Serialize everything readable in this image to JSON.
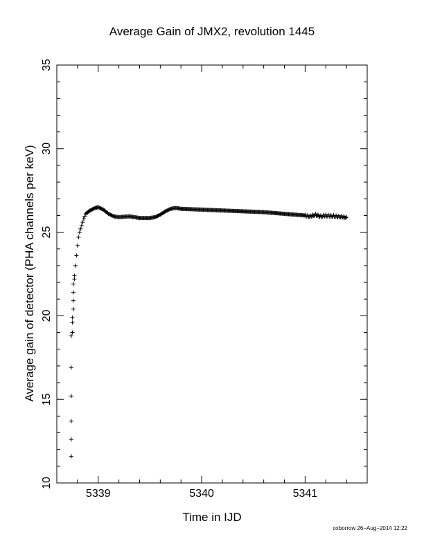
{
  "chart_data": {
    "type": "scatter",
    "title": "Average Gain of JMX2, revolution 1445",
    "xlabel": "Time in IJD",
    "ylabel": "Average gain of detector (PHA channels per keV)",
    "xlim": [
      5338.6,
      5341.6
    ],
    "ylim": [
      10,
      35
    ],
    "xticks": [
      5339,
      5340,
      5341
    ],
    "yticks": [
      10,
      15,
      20,
      25,
      30,
      35
    ],
    "marker": "+",
    "grid": false,
    "points_sparse": [
      [
        5338.74,
        11.6
      ],
      [
        5338.74,
        12.6
      ],
      [
        5338.74,
        13.7
      ],
      [
        5338.74,
        15.2
      ],
      [
        5338.74,
        16.9
      ],
      [
        5338.74,
        18.8
      ],
      [
        5338.75,
        19.0
      ],
      [
        5338.75,
        19.6
      ],
      [
        5338.75,
        19.9
      ],
      [
        5338.76,
        20.4
      ],
      [
        5338.76,
        20.9
      ],
      [
        5338.76,
        21.4
      ],
      [
        5338.76,
        21.9
      ],
      [
        5338.77,
        22.2
      ]
    ],
    "curve": [
      [
        5338.77,
        22.4
      ],
      [
        5338.78,
        23.0
      ],
      [
        5338.79,
        23.6
      ],
      [
        5338.8,
        24.2
      ],
      [
        5338.81,
        24.7
      ],
      [
        5338.82,
        25.0
      ],
      [
        5338.84,
        25.4
      ],
      [
        5338.86,
        25.8
      ],
      [
        5338.88,
        26.1
      ],
      [
        5338.92,
        26.3
      ],
      [
        5338.97,
        26.45
      ],
      [
        5339.0,
        26.5
      ],
      [
        5339.05,
        26.35
      ],
      [
        5339.1,
        26.1
      ],
      [
        5339.15,
        25.95
      ],
      [
        5339.2,
        25.9
      ],
      [
        5339.3,
        25.95
      ],
      [
        5339.4,
        25.85
      ],
      [
        5339.5,
        25.85
      ],
      [
        5339.55,
        25.9
      ],
      [
        5339.6,
        26.05
      ],
      [
        5339.65,
        26.25
      ],
      [
        5339.7,
        26.4
      ],
      [
        5339.75,
        26.45
      ],
      [
        5339.8,
        26.4
      ],
      [
        5340.0,
        26.35
      ],
      [
        5340.2,
        26.3
      ],
      [
        5340.4,
        26.25
      ],
      [
        5340.6,
        26.2
      ],
      [
        5340.8,
        26.1
      ],
      [
        5341.0,
        26.0
      ],
      [
        5341.05,
        25.95
      ],
      [
        5341.1,
        26.05
      ],
      [
        5341.15,
        25.95
      ],
      [
        5341.2,
        26.0
      ],
      [
        5341.3,
        25.95
      ],
      [
        5341.4,
        25.9
      ]
    ]
  },
  "footer": "oxborrow 26−Aug−2014 12:22"
}
